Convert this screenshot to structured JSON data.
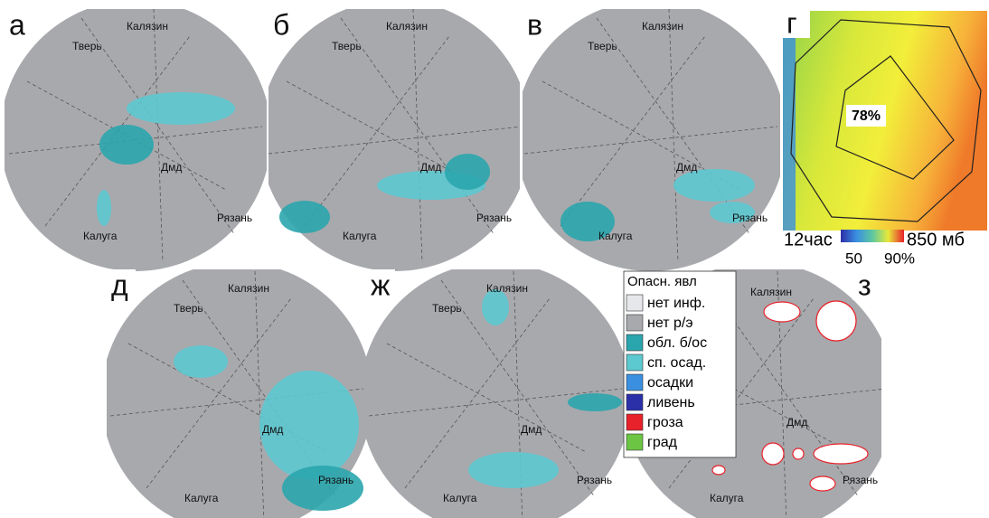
{
  "panels": [
    {
      "letter": "а",
      "cities": [
        "Калязин",
        "Тверь",
        "Дмд",
        "Рязань",
        "Калуга"
      ]
    },
    {
      "letter": "б",
      "cities": [
        "Калязин",
        "Тверь",
        "Дмд",
        "Рязань",
        "Калуга"
      ]
    },
    {
      "letter": "в",
      "cities": [
        "Калязин",
        "Тверь",
        "Дмд",
        "Рязань",
        "Калуга"
      ]
    },
    {
      "letter": "д",
      "cities": [
        "Калязин",
        "Тверь",
        "Дмд",
        "Рязань",
        "Калуга"
      ]
    },
    {
      "letter": "ж",
      "cities": [
        "Калязин",
        "Тверь",
        "Дмд",
        "Рязань",
        "Калуга"
      ]
    },
    {
      "letter": "з",
      "cities": [
        "Калязин",
        "Дмд",
        "Рязань",
        "Калуга"
      ]
    }
  ],
  "panel_g": {
    "letter": "г",
    "value": "78%",
    "time": "12час",
    "level": "850 мб",
    "scale_min": "50",
    "scale_max": "90%"
  },
  "legend": {
    "title": "Опасн. явл",
    "items": [
      {
        "label": "нет инф.",
        "color": "#e6e7ea"
      },
      {
        "label": "нет р/э",
        "color": "#a8a9ad"
      },
      {
        "label": "обл. б/ос",
        "color": "#2aa5ad"
      },
      {
        "label": "сп. осад.",
        "color": "#5cc8d0"
      },
      {
        "label": "осадки",
        "color": "#3a8fe0"
      },
      {
        "label": "ливень",
        "color": "#2b2fa8"
      },
      {
        "label": "гроза",
        "color": "#e8222a"
      },
      {
        "label": "град",
        "color": "#6cc644"
      }
    ]
  }
}
